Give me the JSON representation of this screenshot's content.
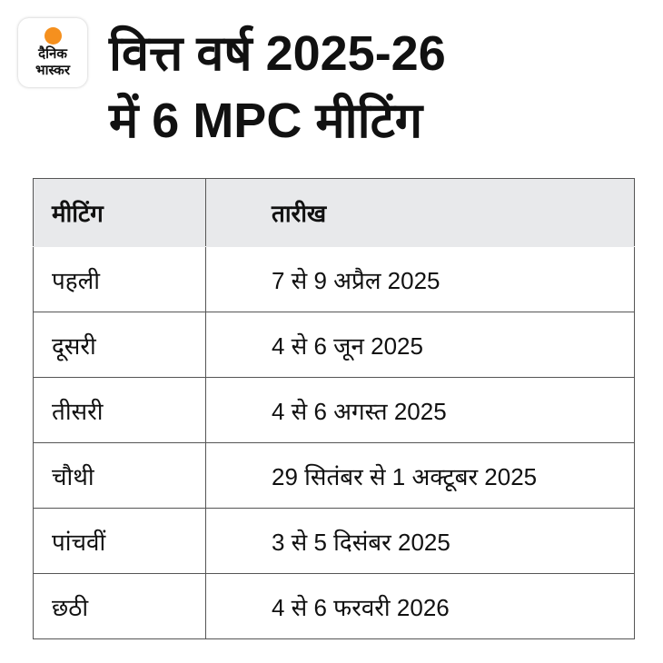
{
  "logo": {
    "line1": "दैनिक",
    "line2": "भास्कर",
    "accent": "#f5901e"
  },
  "title": {
    "line1": "वित्त वर्ष 2025-26",
    "line2": "में 6 MPC मीटिंग"
  },
  "table": {
    "headers": [
      "मीटिंग",
      "तारीख"
    ],
    "rows": [
      [
        "पहली",
        "7 से 9 अप्रैल 2025"
      ],
      [
        "दूसरी",
        "4 से 6 जून 2025"
      ],
      [
        "तीसरी",
        "4 से 6 अगस्त 2025"
      ],
      [
        "चौथी",
        "29 सितंबर से 1 अक्टूबर 2025"
      ],
      [
        "पांचवीं",
        "3 से 5 दिसंबर 2025"
      ],
      [
        "छठी",
        "4 से 6 फरवरी 2026"
      ]
    ]
  }
}
